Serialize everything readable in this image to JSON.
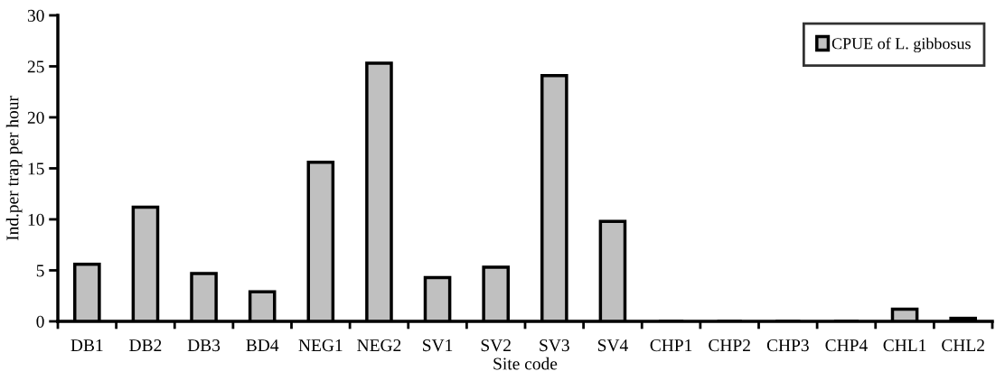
{
  "chart_data": {
    "type": "bar",
    "xlabel": "Site code",
    "ylabel": "Ind.per trap per hour",
    "categories": [
      "DB1",
      "DB2",
      "DB3",
      "BD4",
      "NEG1",
      "NEG2",
      "SV1",
      "SV2",
      "SV3",
      "SV4",
      "CHP1",
      "CHP2",
      "CHP3",
      "CHP4",
      "CHL1",
      "CHL2"
    ],
    "series": [
      {
        "name": "CPUE of L. gibbosus",
        "color": "#c0c0c0",
        "values": [
          5.6,
          11.2,
          4.7,
          2.9,
          15.6,
          25.3,
          4.3,
          5.3,
          24.1,
          9.8,
          0,
          0,
          0,
          0,
          1.2,
          0.3
        ]
      }
    ],
    "ylim": [
      0,
      30
    ],
    "yticks": [
      0,
      5,
      10,
      15,
      20,
      25,
      30
    ],
    "grid": false,
    "legend": "top right"
  }
}
